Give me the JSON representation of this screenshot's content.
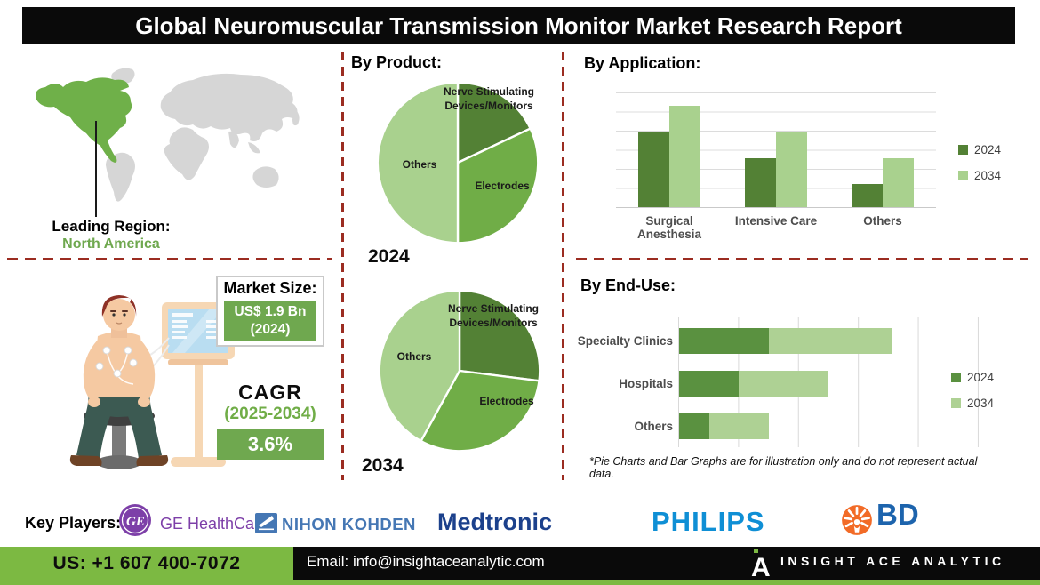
{
  "title": "Global Neuromuscular Transmission Monitor Market Research Report",
  "map": {
    "region_highlight": "North America",
    "highlight_color": "#6fb049",
    "base_color": "#d6d6d6"
  },
  "leading_region": {
    "label": "Leading Region:",
    "value": "North America",
    "value_color": "#6fa84f"
  },
  "market_size": {
    "label": "Market Size:",
    "value": "US$ 1.9 Bn",
    "year": "(2024)",
    "box_color": "#6fa84f"
  },
  "cagr": {
    "label": "CAGR",
    "period": "(2025-2034)",
    "value": "3.6%",
    "box_color": "#6fa84f"
  },
  "section_titles": {
    "product": "By Product:",
    "application": "By Application:",
    "end_use": "By End-Use:"
  },
  "footnote": "*Pie Charts and Bar Graphs are for illustration only and do not represent actual data.",
  "key_players": {
    "label": "Key Players:",
    "ge": {
      "name": "GE HealthCare",
      "color": "#7d3fa8"
    },
    "nihon_kohden": {
      "name": "NIHON KOHDEN",
      "color": "#4577b4"
    },
    "medtronic": {
      "name": "Medtronic",
      "color": "#1c418c"
    },
    "philips": {
      "name": "PHILIPS",
      "color": "#0f8fd5"
    },
    "bd": {
      "name": "BD",
      "icon_color": "#f26b27",
      "color": "#1d64ad"
    }
  },
  "contact": {
    "phone": "US: +1 607 400-7072",
    "email": "Email: info@insightaceanalytic.com",
    "brand": "INSIGHT ACE ANALYTIC",
    "bar_green": "#7cb942"
  },
  "chart_data": [
    {
      "type": "pie",
      "title": "By Product (2024)",
      "year": "2024",
      "labels": [
        "Nerve Stimulating Devices/Monitors",
        "Electrodes",
        "Others"
      ],
      "values": [
        18,
        32,
        50
      ],
      "colors": [
        "#538135",
        "#70ad47",
        "#a9d18e"
      ],
      "note": "illustrative proportions, not actual data"
    },
    {
      "type": "pie",
      "title": "By Product (2034)",
      "year": "2034",
      "labels": [
        "Nerve Stimulating Devices/Monitors",
        "Electrodes",
        "Others"
      ],
      "values": [
        27,
        31,
        42
      ],
      "colors": [
        "#538135",
        "#70ad47",
        "#a9d18e"
      ],
      "note": "illustrative proportions, not actual data"
    },
    {
      "type": "bar",
      "title": "By Application",
      "categories": [
        "Surgical Anesthesia",
        "Intensive Care",
        "Others"
      ],
      "series": [
        {
          "name": "2024",
          "color": "#538135",
          "values": [
            66,
            43,
            20
          ]
        },
        {
          "name": "2034",
          "color": "#a9d18e",
          "values": [
            88,
            66,
            43
          ]
        }
      ],
      "ylim": [
        0,
        100
      ],
      "grid": true,
      "legend_position": "right",
      "note": "illustrative values, not actual data"
    },
    {
      "type": "bar-horizontal-stacked",
      "title": "By End-Use",
      "categories": [
        "Specialty Clinics",
        "Hospitals",
        "Others"
      ],
      "series": [
        {
          "name": "2024",
          "color": "#5a9140",
          "values": [
            30,
            20,
            10
          ]
        },
        {
          "name": "2034",
          "color": "#aed194",
          "values": [
            41,
            30,
            20
          ]
        }
      ],
      "xlim": [
        0,
        100
      ],
      "grid": true,
      "legend_position": "right",
      "note": "illustrative values, not actual data"
    }
  ]
}
